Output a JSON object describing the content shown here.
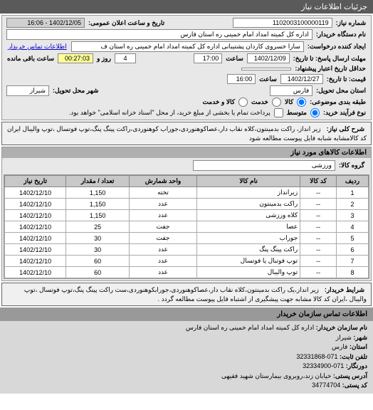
{
  "colors": {
    "header_bg": "#5a5a5a",
    "header_fg": "#ffffff",
    "section_bg": "#e8e8e8",
    "section_title_bg": "#b0b0b0",
    "input_bg": "#ffffff",
    "border": "#999999",
    "link": "#0000cc",
    "table_header_bg": "#c8c8c8"
  },
  "panel_title": "جزئیات اطلاعات نیاز",
  "fields": {
    "need_num_label": "شماره نیاز:",
    "need_num": "1102003100000119",
    "announce_datetime_label": "تاریخ و ساعت اعلان عمومی:",
    "announce_datetime": "1402/12/05 - 16:06",
    "buyer_org_label": "نام دستگاه خریدار:",
    "buyer_org": "اداره کل کمیته امداد امام خمینی ره استان فارس",
    "requester_label": "ایجاد کننده درخواست:",
    "requester": "سارا خسروی کاردان پشتیبانی اداره کل کمیته امداد امام خمینی ره استان ف",
    "buyer_contact_link": "اطلاعات تماس خریدار",
    "deadline_send_label": "مهلت ارسال پاسخ: تا تاریخ:",
    "deadline_send_date": "1402/12/09",
    "deadline_send_time_label": "ساعت",
    "deadline_send_time": "17:00",
    "remaining_label": "ساعت باقی مانده",
    "remaining_days": "4",
    "remaining_days_label": "روز و",
    "remaining_time": "00:27:03",
    "delivery_deadline_label": "حداقل تاریخ اعتبار پیشنهاد:",
    "price_date_label": "قیمت: تا تاریخ:",
    "price_date": "1402/12/27",
    "price_time_label": "ساعت",
    "price_time": "16:00",
    "delivery_loc_label": "استان محل تحویل:",
    "delivery_province": "فارس",
    "delivery_city_label": "شهر محل تحویل:",
    "delivery_city": "شیراز",
    "budget_class_label": "طبقه بندی موضوعی:",
    "budget_opt1": "کالا",
    "budget_opt2": "خدمت",
    "budget_opt3": "کالا و خدمت",
    "brand_process_label": "نوع فرآیند خرید:",
    "brand_opt1": "متوسط",
    "brand_opt2": "پرداخت تمام یا بخشی از مبلغ خرید، از محل \"اسناد خزانه اسلامی\" خواهد بود."
  },
  "main_desc_label": "شرح کلی نیاز:",
  "main_desc": "زیر انداز، راکت بدمینتون،کلاه نقاب دار،عصاکوهنوردی،جوراب کوهنوردی،راکت پینگ پنگ،توپ فوتسال ،توپ والیبال ایران کد کالامشابه شبابه فایل پیوست مطالعه شود",
  "goods_section_title": "اطلاعات کالاهای مورد نیاز",
  "goods_group_label": "گروه کالا:",
  "goods_group": "ورزشی",
  "table": {
    "headers": [
      "ردیف",
      "کد کالا",
      "نام کالا",
      "واحد شمارش",
      "تعداد / مقدار",
      "تاریخ نیاز"
    ],
    "rows": [
      [
        "1",
        "--",
        "زیرانداز",
        "تخته",
        "1,150",
        "1402/12/10"
      ],
      [
        "2",
        "--",
        "راکت بدمینتون",
        "عدد",
        "1,150",
        "1402/12/10"
      ],
      [
        "3",
        "--",
        "کلاه ورزشی",
        "عدد",
        "1,150",
        "1402/12/10"
      ],
      [
        "4",
        "--",
        "عصا",
        "جفت",
        "25",
        "1402/12/10"
      ],
      [
        "5",
        "--",
        "جوراب",
        "جفت",
        "30",
        "1402/12/10"
      ],
      [
        "6",
        "--",
        "راکت پینگ پنگ",
        "عدد",
        "30",
        "1402/12/10"
      ],
      [
        "7",
        "--",
        "توپ فوتبال یا فوتسال",
        "عدد",
        "60",
        "1402/12/10"
      ],
      [
        "8",
        "--",
        "توپ والیبال",
        "عدد",
        "60",
        "1402/12/10"
      ]
    ]
  },
  "buyer_conditions_label": "شرایط خریدار:",
  "buyer_conditions": "زیر انداز،یک راکت بدمینتون،کلاه نقاب دار،عصاکوهنوردی،جورابکوهنوردی،ست راکت پینگ پنگ،توپ فوتسال ،توپ والیبال ،ایران کد کالا مشابه جهت پیشگیری از اشتباه فایل پیوست مطالعه گردد .",
  "contact_section_title": "اطلاعات تماس سازمان خریدار",
  "contact": {
    "org_name_label": "نام سازمان خریدار:",
    "org_name": "اداره کل کمیته امداد امام خمینی ره استان فارس",
    "city_label": "شهر:",
    "city": "شیراز",
    "province_label": "استان:",
    "province": "فارس",
    "phone_label": "تلفن ثابت:",
    "phone": "071-32331868",
    "fax_label": "دورنگار:",
    "fax": "071-32334900",
    "address_label": "آدرس پستی:",
    "address": "خیابان زند،روبروی بیمارستان شهید فقیهی",
    "postal_label": "کد پستی:",
    "postal": "34774704"
  }
}
